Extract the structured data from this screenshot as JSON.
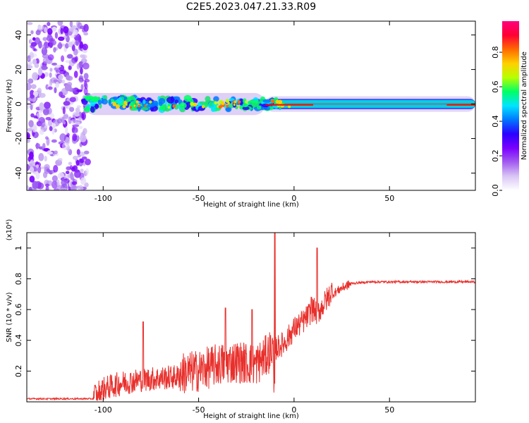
{
  "figure": {
    "title": "C2E5.2023.047.21.33.R09"
  },
  "chart_data": [
    {
      "type": "heatmap",
      "xlabel": "Height of straight line (km)",
      "ylabel": "Frequency (Hz)",
      "xlim": [
        -140,
        95
      ],
      "ylim": [
        -50,
        48
      ],
      "x_ticks": [
        -100,
        -50,
        0,
        50
      ],
      "y_ticks": [
        -40,
        -20,
        0,
        20,
        40
      ],
      "colorbar": {
        "label": "Normalized spectral amplitude",
        "range": [
          0.0,
          0.98
        ],
        "ticks": [
          0.0,
          0.2,
          0.4,
          0.6,
          0.8
        ],
        "tick_labels": [
          "0.0",
          "0.2",
          "0.4",
          "0.6",
          "0.8"
        ],
        "colormap": [
          "#ffffff",
          "#d9c6f5",
          "#a35cf0",
          "#7a00ff",
          "#2a00ff",
          "#0077ff",
          "#00e5ff",
          "#00ff66",
          "#b8ff00",
          "#ffd000",
          "#ff6a00",
          "#ff0033",
          "#ff007f"
        ]
      },
      "features": {
        "noise_region_x": [
          -140,
          -108
        ],
        "main_band_center_hz": 0,
        "band_halfwidth_hz": [
          4,
          3,
          1.5
        ],
        "band_x_ranges": [
          -110,
          -15,
          95
        ],
        "peak_color": "#ff0000"
      },
      "grid": false
    },
    {
      "type": "line",
      "xlabel": "Height of straight line (km)",
      "ylabel": "SNR (10 * v/v)",
      "y_multiplier": "(x10⁴)",
      "xlim": [
        -140,
        95
      ],
      "ylim": [
        0,
        1.1
      ],
      "x_ticks": [
        -100,
        -50,
        0,
        50
      ],
      "y_ticks": [
        0.2,
        0.4,
        0.6,
        0.8,
        1.0
      ],
      "series_color": "#e8302c",
      "envelope": {
        "x": [
          -140,
          -105,
          -100,
          -90,
          -80,
          -70,
          -60,
          -50,
          -40,
          -30,
          -20,
          -15,
          -12,
          -10,
          -5,
          0,
          5,
          10,
          12,
          15,
          20,
          25,
          30,
          40,
          50,
          60,
          70,
          80,
          95
        ],
        "baseline": [
          0.02,
          0.02,
          0.06,
          0.1,
          0.12,
          0.13,
          0.14,
          0.16,
          0.2,
          0.22,
          0.2,
          0.25,
          0.3,
          0.32,
          0.36,
          0.45,
          0.5,
          0.58,
          0.55,
          0.6,
          0.7,
          0.74,
          0.77,
          0.78,
          0.78,
          0.78,
          0.78,
          0.78,
          0.78
        ]
      },
      "peaks": [
        {
          "x": -79,
          "y": 0.52
        },
        {
          "x": -10,
          "y": 1.1
        },
        {
          "x": 9,
          "y": 0.68
        },
        {
          "x": 12,
          "y": 1.0
        },
        {
          "x": -36,
          "y": 0.61
        },
        {
          "x": -22,
          "y": 0.6
        }
      ],
      "grid": false
    }
  ]
}
